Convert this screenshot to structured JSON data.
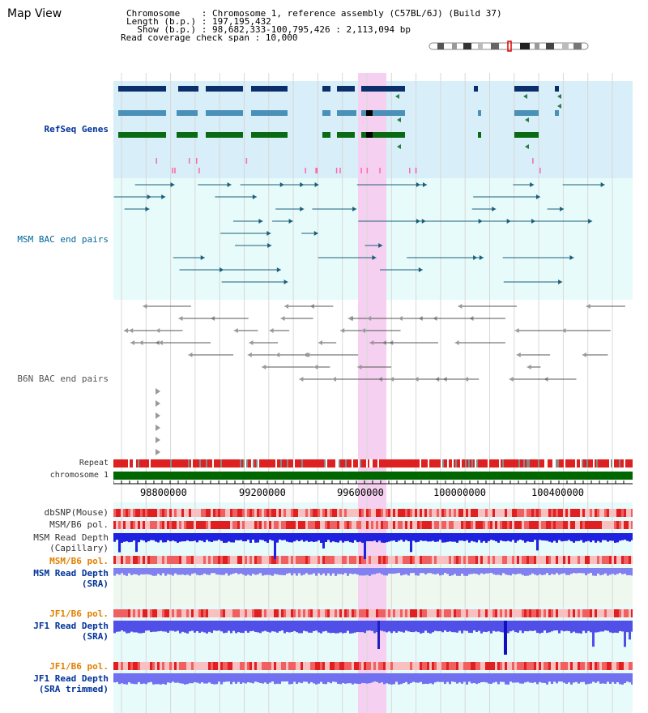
{
  "header": {
    "title": "Map View",
    "chromosome_line": "Chromosome    : Chromosome 1, reference assembly (C57BL/6J) (Build 37)",
    "length_line": "Length (b.p.) : 197,195,432",
    "show_line": "  Show (b.p.) : 98,682,333-100,795,426 : 2,113,094 bp",
    "coverage_line": "Read coverage check span : 10,000"
  },
  "tracks": {
    "refseq_label": "RefSeq Genes",
    "msm_bac_label": "MSM BAC end pairs",
    "b6n_bac_label": "B6N BAC end pairs",
    "repeat_label": "Repeat",
    "chromosome_label": "chromosome 1"
  },
  "axis": {
    "ticks": [
      "98800000",
      "99200000",
      "99600000",
      "100000000",
      "100400000"
    ]
  },
  "lower_tracks": {
    "dbsnp": "dbSNP(Mouse)",
    "msm_b6_pol": "MSM/B6 pol.",
    "msm_read_depth_cap_1": "MSM Read Depth",
    "msm_read_depth_cap_2": "(Capillary)",
    "msm_b6_pol_2": "MSM/B6 pol.",
    "msm_read_depth_sra_1": "MSM Read Depth",
    "msm_read_depth_sra_2": "(SRA)",
    "jf1_b6_pol": "JF1/B6 pol.",
    "jf1_read_depth_1": "JF1 Read Depth",
    "jf1_read_depth_2": "(SRA)",
    "jf1_b6_pol_2": "JF1/B6 pol.",
    "jf1_trim_1": "JF1 Read Depth",
    "jf1_trim_2": "(SRA trimmed)"
  },
  "colors": {
    "refseq_bg": "#d8eef8",
    "bac_bg": "#e8fbfb",
    "highlight": "#f5d0f0",
    "repeat_red": "#dd2020",
    "chromosome_green": "#006600",
    "depth_blue": "#2020e0",
    "depth_light": "#8080f0"
  }
}
